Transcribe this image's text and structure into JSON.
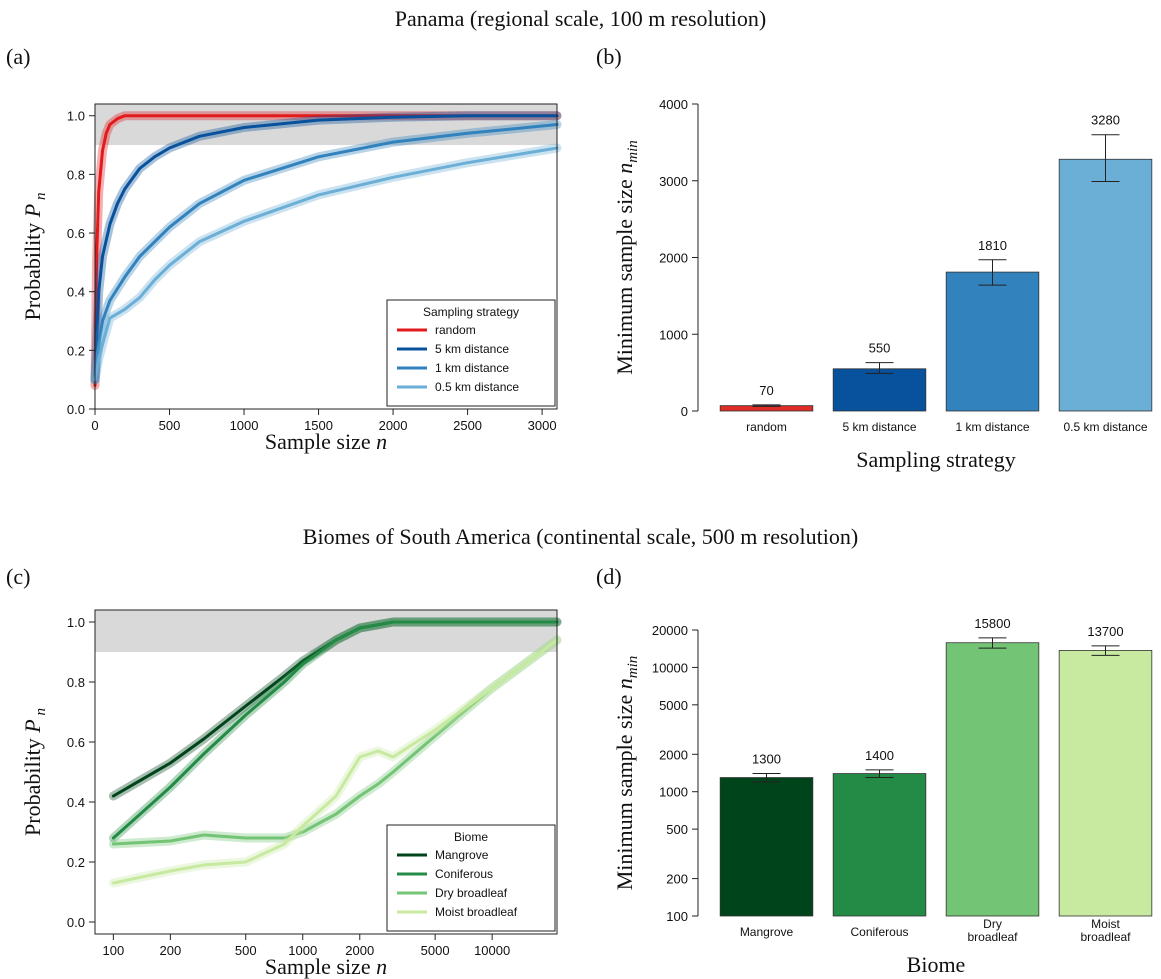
{
  "titles": {
    "top": "Panama (regional scale, 100 m resolution)",
    "bottom": "Biomes of South America (continental scale, 500 m resolution)"
  },
  "chart_data": [
    {
      "panel": "(a)",
      "type": "line",
      "xlabel": "Sample size n",
      "ylabel": "Probability P n",
      "xlim": [
        0,
        3100
      ],
      "ylim": [
        0,
        1.04
      ],
      "xticks": [
        0,
        500,
        1000,
        1500,
        2000,
        2500,
        3000
      ],
      "yticks": [
        0.0,
        0.2,
        0.4,
        0.6,
        0.8,
        1.0
      ],
      "shaded_band": [
        0.9,
        1.04
      ],
      "legend_title": "Sampling strategy",
      "legend_position": "bottom-right",
      "series": [
        {
          "name": "random",
          "color": "#e31a1c",
          "x": [
            0,
            10,
            25,
            50,
            75,
            100,
            150,
            200,
            300,
            500,
            3100
          ],
          "y": [
            0.08,
            0.5,
            0.74,
            0.88,
            0.94,
            0.97,
            0.99,
            1.0,
            1.0,
            1.0,
            1.0
          ]
        },
        {
          "name": "5 km distance",
          "color": "#08519c",
          "x": [
            0,
            25,
            50,
            100,
            150,
            200,
            300,
            400,
            500,
            700,
            1000,
            1500,
            2000,
            2500,
            3100
          ],
          "y": [
            0.1,
            0.4,
            0.52,
            0.63,
            0.7,
            0.75,
            0.82,
            0.86,
            0.89,
            0.93,
            0.96,
            0.985,
            0.995,
            1.0,
            1.0
          ]
        },
        {
          "name": "1 km distance",
          "color": "#3182bd",
          "x": [
            0,
            25,
            50,
            100,
            200,
            300,
            400,
            500,
            700,
            1000,
            1500,
            2000,
            2500,
            3100
          ],
          "y": [
            0.1,
            0.22,
            0.3,
            0.37,
            0.45,
            0.52,
            0.57,
            0.62,
            0.7,
            0.78,
            0.86,
            0.91,
            0.94,
            0.97
          ]
        },
        {
          "name": "0.5 km distance",
          "color": "#6baed6",
          "x": [
            0,
            25,
            50,
            100,
            200,
            300,
            400,
            500,
            700,
            1000,
            1500,
            2000,
            2500,
            3100
          ],
          "y": [
            0.1,
            0.17,
            0.22,
            0.31,
            0.34,
            0.38,
            0.44,
            0.49,
            0.57,
            0.64,
            0.73,
            0.79,
            0.84,
            0.89
          ]
        }
      ]
    },
    {
      "panel": "(b)",
      "type": "bar",
      "xlabel": "Sampling strategy",
      "ylabel": "Minimum sample size n min",
      "ylim": [
        0,
        4000
      ],
      "yticks": [
        0,
        1000,
        2000,
        3000,
        4000
      ],
      "categories": [
        "random",
        "5 km distance",
        "1 km distance",
        "0.5 km distance"
      ],
      "values": [
        70,
        550,
        1810,
        3280
      ],
      "labels": [
        "70",
        "550",
        "1810",
        "3280"
      ],
      "err_low": [
        60,
        490,
        1640,
        2990
      ],
      "err_high": [
        80,
        630,
        1970,
        3600
      ],
      "colors": [
        "#de2d26",
        "#08519c",
        "#3182bd",
        "#6baed6"
      ]
    },
    {
      "panel": "(c)",
      "type": "line",
      "xlabel": "Sample size n",
      "ylabel": "Probability P n",
      "xscale": "log",
      "xlim": [
        80,
        22000
      ],
      "ylim": [
        -0.04,
        1.04
      ],
      "xticks": [
        100,
        200,
        500,
        1000,
        2000,
        5000,
        10000
      ],
      "yticks": [
        0.0,
        0.2,
        0.4,
        0.6,
        0.8,
        1.0
      ],
      "shaded_band": [
        0.9,
        1.04
      ],
      "legend_title": "Biome",
      "legend_position": "bottom-right",
      "series": [
        {
          "name": "Mangrove",
          "color": "#00441b",
          "x": [
            100,
            200,
            300,
            500,
            800,
            1000,
            1500,
            2000,
            3000,
            4000,
            5000,
            10000,
            22000
          ],
          "y": [
            0.42,
            0.53,
            0.61,
            0.72,
            0.82,
            0.87,
            0.94,
            0.98,
            1.0,
            1.0,
            1.0,
            1.0,
            1.0
          ]
        },
        {
          "name": "Coniferous",
          "color": "#238b45",
          "x": [
            100,
            200,
            300,
            500,
            800,
            1000,
            1500,
            2000,
            3000,
            4000,
            5000,
            10000,
            22000
          ],
          "y": [
            0.28,
            0.45,
            0.56,
            0.69,
            0.8,
            0.86,
            0.94,
            0.98,
            1.0,
            1.0,
            1.0,
            1.0,
            1.0
          ]
        },
        {
          "name": "Dry broadleaf",
          "color": "#74c476",
          "x": [
            100,
            200,
            300,
            500,
            800,
            1000,
            1500,
            2000,
            2500,
            3000,
            5000,
            10000,
            22000
          ],
          "y": [
            0.26,
            0.27,
            0.29,
            0.28,
            0.28,
            0.3,
            0.36,
            0.42,
            0.46,
            0.5,
            0.62,
            0.78,
            0.94
          ]
        },
        {
          "name": "Moist broadleaf",
          "color": "#c7e9a0",
          "x": [
            100,
            200,
            300,
            500,
            800,
            1000,
            1500,
            2000,
            2500,
            3000,
            5000,
            10000,
            22000
          ],
          "y": [
            0.13,
            0.17,
            0.19,
            0.2,
            0.26,
            0.32,
            0.42,
            0.55,
            0.57,
            0.55,
            0.64,
            0.78,
            0.94
          ]
        }
      ]
    },
    {
      "panel": "(d)",
      "type": "bar",
      "xlabel": "Biome",
      "ylabel": "Minimum sample size n min",
      "yscale": "log",
      "ylim": [
        100,
        20000
      ],
      "yticks": [
        100,
        200,
        500,
        1000,
        2000,
        5000,
        10000,
        20000
      ],
      "categories": [
        "Mangrove",
        "Coniferous",
        "Dry broadleaf",
        "Moist broadleaf"
      ],
      "values": [
        1300,
        1400,
        15800,
        13700
      ],
      "labels": [
        "1300",
        "1400",
        "15800",
        "13700"
      ],
      "err_low": [
        1200,
        1300,
        14300,
        12500
      ],
      "err_high": [
        1400,
        1500,
        17300,
        14900
      ],
      "colors": [
        "#00441b",
        "#238b45",
        "#74c476",
        "#c7e9a0"
      ]
    }
  ]
}
